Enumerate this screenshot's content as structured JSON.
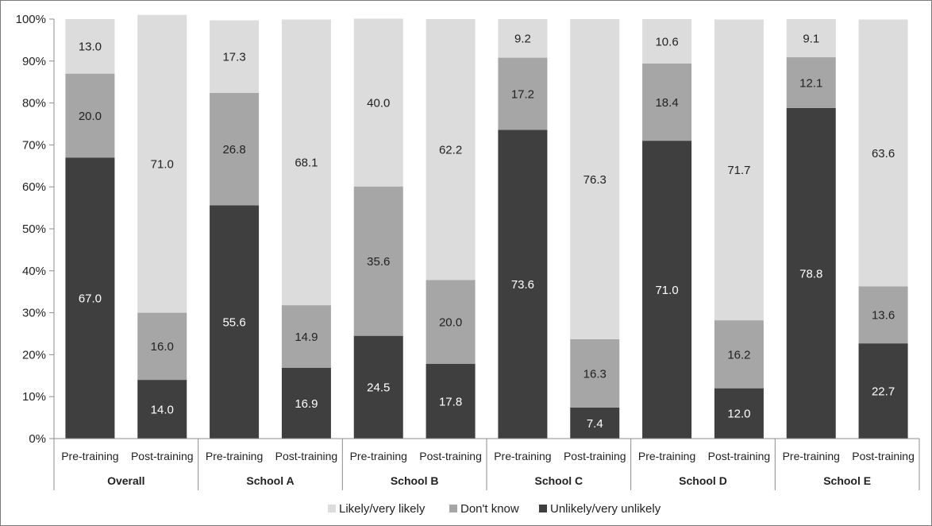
{
  "chart_data": {
    "type": "bar",
    "stacked": true,
    "percent": true,
    "groups": [
      "Overall",
      "School A",
      "School B",
      "School C",
      "School D",
      "School E"
    ],
    "subcategories": [
      "Pre-training",
      "Post-training"
    ],
    "series": [
      {
        "name": "Unlikely/very unlikely",
        "color": "#3f3f3f",
        "label_color": "#ffffff",
        "values": [
          67.0,
          14.0,
          55.6,
          16.9,
          24.5,
          17.8,
          73.6,
          7.4,
          71.0,
          12.0,
          78.8,
          22.7
        ],
        "labels": [
          "67.0",
          "14.0",
          "55.6",
          "16.9",
          "24.5",
          "17.8",
          "73.6",
          "7.4",
          "71.0",
          "12.0",
          "78.8",
          "22.7"
        ]
      },
      {
        "name": "Don't know",
        "color": "#a6a6a6",
        "label_color": "#222222",
        "values": [
          20.0,
          16.0,
          26.8,
          14.9,
          35.6,
          20.0,
          17.2,
          16.3,
          18.4,
          16.2,
          12.1,
          13.6
        ],
        "labels": [
          "20.0",
          "16.0",
          "26.8",
          "14.9",
          "35.6",
          "20.0",
          "17.2",
          "16.3",
          "18.4",
          "16.2",
          "12.1",
          "13.6"
        ]
      },
      {
        "name": "Likely/very likely",
        "color": "#dcdcdc",
        "label_color": "#222222",
        "values": [
          13.0,
          71.0,
          17.3,
          68.1,
          40.0,
          62.2,
          9.2,
          76.3,
          10.6,
          71.7,
          9.1,
          63.6
        ],
        "labels": [
          "13.0",
          "71.0",
          "17.3",
          "68.1",
          "40.0",
          "62.2",
          "9.2",
          "76.3",
          "10.6",
          "71.7",
          "9.1",
          "63.6"
        ]
      }
    ],
    "y_ticks": [
      "0%",
      "10%",
      "20%",
      "30%",
      "40%",
      "50%",
      "60%",
      "70%",
      "80%",
      "90%",
      "100%"
    ],
    "ylim": [
      0,
      100
    ],
    "legend": {
      "placement": "bottom",
      "order": [
        "Likely/very likely",
        "Don't know",
        "Unlikely/very unlikely"
      ]
    },
    "grid": false
  }
}
